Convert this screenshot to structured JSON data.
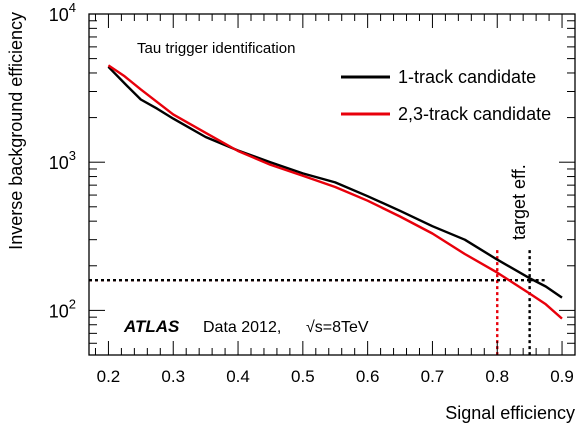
{
  "chart_data": {
    "type": "line",
    "xlabel": "Signal efficiency",
    "ylabel": "Inverse background efficiency",
    "xlim": [
      0.17,
      0.92
    ],
    "ylim": [
      50,
      10000
    ],
    "yscale": "log",
    "x_ticks": [
      "0.2",
      "0.3",
      "0.4",
      "0.5",
      "0.6",
      "0.7",
      "0.8",
      "0.9"
    ],
    "y_ticks": [
      {
        "base": "10",
        "exp": "2",
        "value": 100
      },
      {
        "base": "10",
        "exp": "3",
        "value": 1000
      },
      {
        "base": "10",
        "exp": "4",
        "value": 10000
      }
    ],
    "annotation": "Tau trigger identification",
    "experiment": "ATLAS",
    "data_label": "Data 2012,",
    "energy_label": "√s=8TeV",
    "target_label": "target eff.",
    "legend": {
      "placement": "top-right"
    },
    "series": [
      {
        "name": "1-track candidate",
        "color": "#000000",
        "x": [
          0.2,
          0.225,
          0.25,
          0.275,
          0.3,
          0.35,
          0.4,
          0.45,
          0.5,
          0.55,
          0.6,
          0.65,
          0.7,
          0.75,
          0.8,
          0.85,
          0.875,
          0.9
        ],
        "y": [
          4400,
          3400,
          2650,
          2300,
          1970,
          1480,
          1200,
          1000,
          840,
          730,
          590,
          470,
          370,
          300,
          220,
          165,
          145,
          122
        ]
      },
      {
        "name": "2,3-track candidate",
        "color": "#e8000b",
        "x": [
          0.2,
          0.225,
          0.25,
          0.275,
          0.3,
          0.35,
          0.4,
          0.45,
          0.5,
          0.55,
          0.6,
          0.65,
          0.7,
          0.75,
          0.8,
          0.85,
          0.875,
          0.9
        ],
        "y": [
          4500,
          3800,
          3100,
          2550,
          2100,
          1580,
          1190,
          960,
          810,
          680,
          550,
          430,
          330,
          240,
          180,
          130,
          110,
          88
        ]
      }
    ],
    "reference_lines": [
      {
        "color": "#e8000b",
        "x": 0.8,
        "y": 160
      },
      {
        "color": "#000000",
        "x": 0.85,
        "y": 160
      }
    ]
  }
}
